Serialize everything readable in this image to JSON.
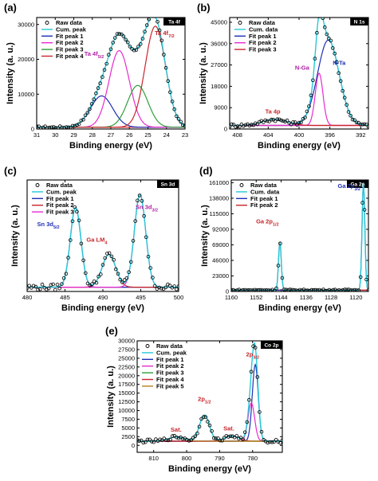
{
  "chart_data": [
    {
      "panel": "(a)",
      "tag": "Ta 4f",
      "type": "line",
      "xlabel": "Binding energy (eV)",
      "ylabel": "Intensity (a. u.)",
      "xlim": [
        31,
        23
      ],
      "ylim": [
        0,
        32000
      ],
      "xticks": [
        31,
        30,
        29,
        28,
        27,
        26,
        25,
        24,
        23
      ],
      "yticks": [
        0,
        10000,
        20000,
        30000
      ],
      "baseline": 500,
      "noise": 300,
      "legend": [
        "Raw data",
        "Cum. peak",
        "Fit peak 1",
        "Fit peak 2",
        "Fit peak 3",
        "Fit peak 4"
      ],
      "series": [
        {
          "name": "Fit peak 1",
          "color": "#1f2fb5",
          "center": 27.5,
          "height": 9000,
          "sigma": 0.6
        },
        {
          "name": "Fit peak 2",
          "color": "#e62cd0",
          "center": 26.55,
          "height": 22000,
          "sigma": 0.55
        },
        {
          "name": "Fit peak 3",
          "color": "#2e9e3a",
          "center": 25.55,
          "height": 12000,
          "sigma": 0.55
        },
        {
          "name": "Fit peak 4",
          "color": "#c8252b",
          "center": 24.6,
          "height": 29000,
          "sigma": 0.55
        }
      ],
      "annotations": [
        {
          "text": "Ta 4f",
          "sub": "5/2",
          "x": 27.9,
          "y": 21000,
          "color": "#b01fa6"
        },
        {
          "text": "Ta 4f",
          "sub": "7/2",
          "x": 24.1,
          "y": 27000,
          "color": "#c8252b"
        }
      ]
    },
    {
      "panel": "(b)",
      "tag": "N 1s",
      "type": "line",
      "xlabel": "Binding energy (eV)",
      "ylabel": "Intensity (a. u.)",
      "xlim": [
        409,
        391
      ],
      "ylim": [
        0,
        47000
      ],
      "xticks": [
        408,
        404,
        400,
        396,
        392
      ],
      "yticks": [
        0,
        9000,
        18000,
        27000,
        36000,
        45000
      ],
      "baseline": 1500,
      "noise": 700,
      "legend": [
        "Raw data",
        "Cum. data",
        "Fit peak 1",
        "Fit peak 2",
        "Fit peak 3"
      ],
      "series": [
        {
          "name": "Fit peak 1",
          "color": "#1f2fb5",
          "center": 396.2,
          "height": 36000,
          "sigma": 1.4
        },
        {
          "name": "Fit peak 2",
          "color": "#e62cd0",
          "center": 397.4,
          "height": 22000,
          "sigma": 0.5
        },
        {
          "name": "Fit peak 3",
          "color": "#c8252b",
          "center": 403.2,
          "height": 2500,
          "sigma": 1.6
        }
      ],
      "annotations": [
        {
          "text": "N-Ga",
          "sub": "",
          "x": 399.6,
          "y": 25000,
          "color": "#b01fa6"
        },
        {
          "text": "N-Ta",
          "sub": "",
          "x": 394.8,
          "y": 27000,
          "color": "#1f2fb5"
        },
        {
          "text": "Ta 4p",
          "sub": "",
          "x": 403.4,
          "y": 6500,
          "color": "#c8252b"
        }
      ]
    },
    {
      "panel": "(c)",
      "tag": "Sn 3d",
      "type": "line",
      "xlabel": "Binding energy (eV)",
      "ylabel": "Intensity (a. u.)",
      "xlim": [
        480,
        500
      ],
      "ylim": [
        0,
        13000
      ],
      "xticks": [
        480,
        485,
        490,
        495,
        500
      ],
      "yticks": [],
      "baseline": 500,
      "noise": 350,
      "legend": [
        "Raw data",
        "Cum. peak",
        "Fit peak 1",
        "Fit peak 2",
        "Fit peak 3"
      ],
      "series": [
        {
          "name": "Fit peak 1",
          "color": "#1f2fb5",
          "center": 486.4,
          "height": 9300,
          "sigma": 0.7
        },
        {
          "name": "Fit peak 2",
          "color": "#c8252b",
          "center": 490.8,
          "height": 3800,
          "sigma": 0.9
        },
        {
          "name": "Fit peak 3",
          "color": "#e62cd0",
          "center": 494.9,
          "height": 10800,
          "sigma": 0.75
        }
      ],
      "annotations": [
        {
          "text": "Sn 3d",
          "sub": "5/2",
          "x": 482.8,
          "y": 7600,
          "color": "#1f2fb5"
        },
        {
          "text": "Ga LM",
          "sub": "4",
          "x": 489.2,
          "y": 5800,
          "color": "#c8252b"
        },
        {
          "text": "Sn 3d",
          "sub": "3/2",
          "x": 495.8,
          "y": 9600,
          "color": "#b01fa6"
        }
      ]
    },
    {
      "panel": "(d)",
      "tag": "Ga 2p",
      "type": "line",
      "xlabel": "Binding energy (eV)",
      "ylabel": "Intensity (a. u.)",
      "xlim": [
        1160,
        1116
      ],
      "ylim": [
        0,
        165000
      ],
      "xticks": [
        1160,
        1152,
        1144,
        1136,
        1128,
        1120
      ],
      "yticks": [
        0,
        23000,
        46000,
        69000,
        92000,
        115000,
        138000,
        161000
      ],
      "baseline": 2000,
      "noise": 900,
      "legend": [
        "Raw data",
        "Cum. data",
        "Fit peak 1",
        "Fit peak 2"
      ],
      "series": [
        {
          "name": "Fit peak 1",
          "color": "#1f2fb5",
          "center": 1117.6,
          "height": 159000,
          "sigma": 0.45
        },
        {
          "name": "Fit peak 2",
          "color": "#c8252b",
          "center": 1144.4,
          "height": 71000,
          "sigma": 0.45
        }
      ],
      "annotations": [
        {
          "text": "Ga 2p",
          "sub": "3/2",
          "x": 1122.2,
          "y": 153000,
          "color": "#1f2fb5"
        },
        {
          "text": "Ga 2p",
          "sub": "1/2",
          "x": 1148.4,
          "y": 101000,
          "color": "#c8252b"
        }
      ]
    },
    {
      "panel": "(e)",
      "tag": "Co 2p",
      "type": "line",
      "xlabel": "Binding energy (eV)",
      "ylabel": "Intensity (a. u.)",
      "xlim": [
        815,
        771
      ],
      "ylim": [
        -2000,
        30000
      ],
      "xticks": [
        810,
        800,
        790,
        780
      ],
      "yticks": [
        0,
        2500,
        5000,
        7500,
        10000,
        12500,
        15000,
        17500,
        20000,
        22500,
        25000,
        27500,
        30000
      ],
      "baseline": 1200,
      "noise": 500,
      "legend": [
        "Raw data",
        "Cum. peak",
        "Fit peak 1",
        "Fit peak 2",
        "Fit peak 3",
        "Fit peak 4",
        "Fit peak 5"
      ],
      "series": [
        {
          "name": "Fit peak 1",
          "color": "#1f2fb5",
          "center": 779.2,
          "height": 22000,
          "sigma": 0.9
        },
        {
          "name": "Fit peak 2",
          "color": "#e62cd0",
          "center": 780.4,
          "height": 11000,
          "sigma": 1.0
        },
        {
          "name": "Fit peak 3",
          "color": "#2e9e3a",
          "center": 794.6,
          "height": 7500,
          "sigma": 1.5
        },
        {
          "name": "Fit peak 4",
          "color": "#c8252b",
          "center": 786.3,
          "height": 1500,
          "sigma": 2.2
        },
        {
          "name": "Fit peak 5",
          "color": "#b3821c",
          "center": 803.0,
          "height": 1200,
          "sigma": 2.5
        }
      ],
      "annotations": [
        {
          "text": "2p",
          "sub": "3/2",
          "x": 780.0,
          "y": 25500,
          "color": "#c8252b"
        },
        {
          "text": "2p",
          "sub": "1/2",
          "x": 794.6,
          "y": 12800,
          "color": "#c8252b"
        },
        {
          "text": "Sat.",
          "sub": "",
          "x": 803.2,
          "y": 4000,
          "color": "#c8252b"
        },
        {
          "text": "Sat.",
          "sub": "",
          "x": 787.2,
          "y": 4300,
          "color": "#c8252b"
        }
      ]
    }
  ]
}
